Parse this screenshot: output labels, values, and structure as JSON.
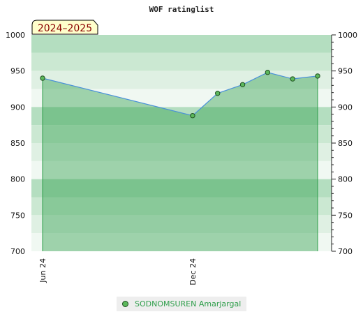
{
  "chart_data": {
    "type": "area",
    "title": "WOF ratinglist",
    "season_label": "2024–2025",
    "ylim": [
      700,
      1000
    ],
    "y_ticks": [
      700,
      750,
      800,
      850,
      900,
      950,
      1000
    ],
    "x_tick_labels": [
      "Jun 24",
      "Dec 24"
    ],
    "series": [
      {
        "name": "SODNOMSUREN Amarjargal",
        "x": [
          "2024-06",
          "2024-12",
          "2025-01",
          "2025-02",
          "2025-03",
          "2025-04",
          "2025-05"
        ],
        "values": [
          940,
          888,
          919,
          931,
          948,
          939,
          943
        ]
      }
    ],
    "legend_position": "bottom-center",
    "colors": {
      "line": "#4a90d9",
      "area": "#2e9e4a",
      "marker": "#5cb85c",
      "marker_stroke": "#1f4d1f",
      "legend_text": "#2e9e4a"
    }
  }
}
